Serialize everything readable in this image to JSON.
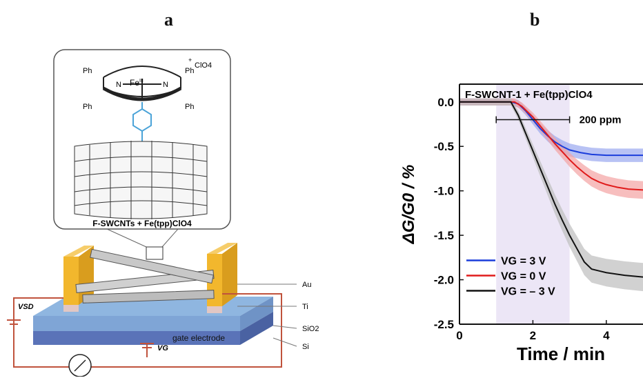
{
  "panels": {
    "a_label": "a",
    "b_label": "b"
  },
  "schematic": {
    "molecule_caption": "F-SWCNTs + Fe(tpp)ClO4",
    "molecule_labels": {
      "ph": "Ph",
      "n": "N",
      "fe": "Fe",
      "fe_ox": "III",
      "counter_ion": "ClO4",
      "charge": "+"
    },
    "layers": [
      "Au",
      "Ti",
      "SiO2",
      "Si"
    ],
    "gate_electrode_label": "gate electrode",
    "vsd_label": "VSD",
    "vg_label": "VG",
    "colors": {
      "gold": "#f2b72d",
      "titanium": "#e2c7c4",
      "sio2": "#8fb6e0",
      "si": "#5a73b8",
      "wire": "#c0523c",
      "pyridine": "#4aa3d8"
    }
  },
  "chart_data": {
    "type": "line",
    "title": "F-SWCNT-1 + Fe(tpp)ClO4",
    "xlabel": "Time / min",
    "ylabel": "ΔG/G0 / %",
    "xlim": [
      0,
      5
    ],
    "ylim": [
      -2.5,
      0.2
    ],
    "x_ticks": [
      0,
      2,
      4
    ],
    "y_ticks": [
      0.0,
      -0.5,
      -1.0,
      -1.5,
      -2.0,
      -2.5
    ],
    "y_tick_labels": [
      "0.0",
      "-0.5",
      "-1.0",
      "-1.5",
      "-2.0",
      "-2.5"
    ],
    "shaded_exposure": [
      1.0,
      3.0
    ],
    "exposure_label": "200 ppm",
    "legend_placement": "bottom-left",
    "series": [
      {
        "name": "VG = 3 V",
        "color": "#1a3ddb",
        "band_color": "#9aa8f0",
        "x": [
          0,
          1.0,
          1.4,
          1.6,
          1.8,
          2.0,
          2.2,
          2.4,
          2.6,
          2.8,
          3.0,
          3.3,
          3.6,
          4.0,
          4.5,
          5.0
        ],
        "y": [
          0.0,
          0.0,
          0.0,
          -0.02,
          -0.1,
          -0.2,
          -0.3,
          -0.38,
          -0.45,
          -0.5,
          -0.54,
          -0.57,
          -0.59,
          -0.6,
          -0.6,
          -0.6
        ]
      },
      {
        "name": "VG = 0 V",
        "color": "#e01a1a",
        "band_color": "#f3a3a3",
        "x": [
          0,
          1.0,
          1.5,
          1.7,
          2.0,
          2.2,
          2.4,
          2.6,
          2.8,
          3.0,
          3.2,
          3.4,
          3.6,
          3.8,
          4.0,
          4.3,
          4.6,
          5.0
        ],
        "y": [
          0.0,
          0.0,
          0.0,
          -0.05,
          -0.17,
          -0.27,
          -0.37,
          -0.47,
          -0.56,
          -0.65,
          -0.73,
          -0.8,
          -0.86,
          -0.9,
          -0.93,
          -0.96,
          -0.98,
          -0.99
        ]
      },
      {
        "name": "VG = – 3 V",
        "color": "#111111",
        "band_color": "#bdbdbd",
        "x": [
          0,
          1.0,
          1.4,
          1.6,
          1.8,
          2.0,
          2.2,
          2.4,
          2.6,
          2.8,
          3.0,
          3.2,
          3.4,
          3.6,
          3.8,
          4.0,
          4.5,
          5.0
        ],
        "y": [
          0.0,
          0.0,
          0.0,
          -0.15,
          -0.35,
          -0.55,
          -0.75,
          -0.95,
          -1.15,
          -1.33,
          -1.5,
          -1.65,
          -1.8,
          -1.88,
          -1.9,
          -1.92,
          -1.95,
          -1.97
        ]
      }
    ]
  }
}
